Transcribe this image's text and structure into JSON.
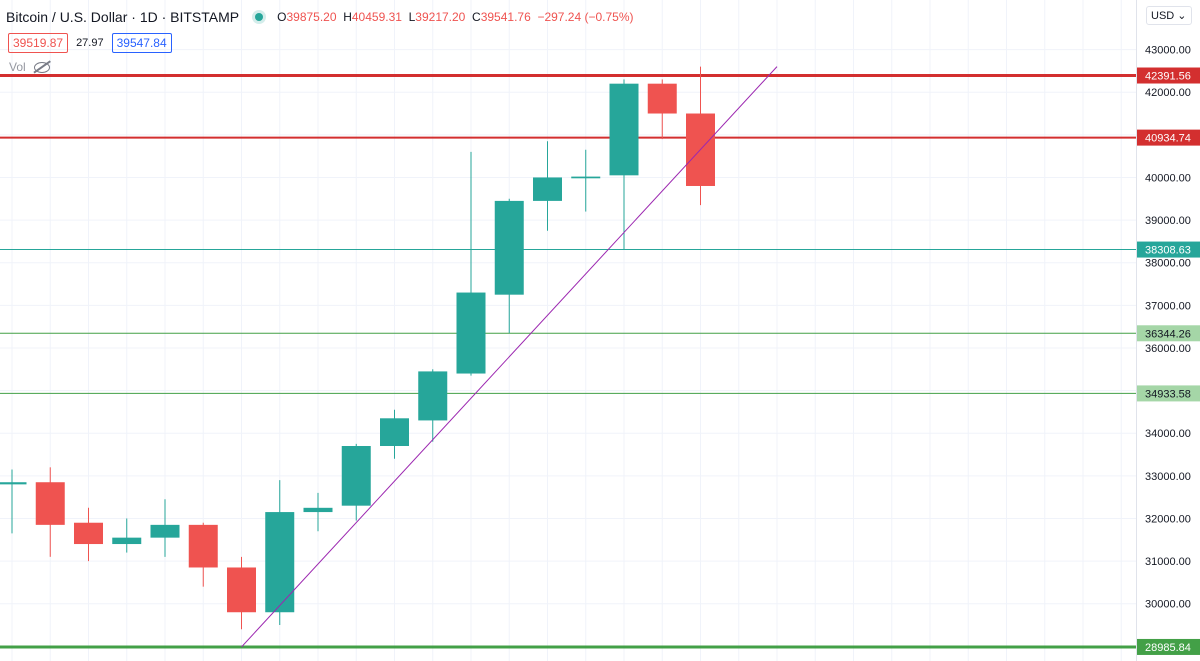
{
  "header": {
    "symbol": "Bitcoin / U.S. Dollar · 1D · BITSTAMP",
    "o_label": "O",
    "o_value": "39875.20",
    "h_label": "H",
    "h_value": "40459.31",
    "l_label": "L",
    "l_value": "39217.20",
    "c_label": "C",
    "c_value": "39541.76",
    "change": "−297.24 (−0.75%)",
    "bid": "39519.87",
    "spread": "27.97",
    "ask": "39547.84",
    "vol_label": "Vol"
  },
  "currency_button": "USD",
  "colors": {
    "up": "#26a69a",
    "down": "#ef5350",
    "trend": "#9c27b0",
    "res_red": "#d32f2f",
    "sup_green": "#43a047"
  },
  "chart_data": {
    "type": "candlestick",
    "y_axis": {
      "ylim": [
        29360,
        43600
      ],
      "ticks": [
        30000,
        31000,
        32000,
        33000,
        34000,
        35000,
        36000,
        37000,
        38000,
        39000,
        40000,
        41000,
        42000,
        43000
      ],
      "tick_labels": [
        "30000.00",
        "31000.00",
        "32000.00",
        "33000.00",
        "34000.00",
        "35000.00",
        "36000.00",
        "37000.00",
        "38000.00",
        "39000.00",
        "40000.00",
        "41000.00",
        "42000.00",
        "43000.00"
      ]
    },
    "candles": [
      {
        "o": 32800,
        "h": 33150,
        "l": 31650,
        "c": 32850
      },
      {
        "o": 32850,
        "h": 33200,
        "l": 31100,
        "c": 31850
      },
      {
        "o": 31900,
        "h": 32250,
        "l": 31000,
        "c": 31400
      },
      {
        "o": 31400,
        "h": 32000,
        "l": 31200,
        "c": 31550
      },
      {
        "o": 31550,
        "h": 32450,
        "l": 31100,
        "c": 31850
      },
      {
        "o": 31850,
        "h": 31900,
        "l": 30400,
        "c": 30850
      },
      {
        "o": 30850,
        "h": 31100,
        "l": 29400,
        "c": 29800
      },
      {
        "o": 29800,
        "h": 32900,
        "l": 29500,
        "c": 32150
      },
      {
        "o": 32150,
        "h": 32600,
        "l": 31700,
        "c": 32250
      },
      {
        "o": 32300,
        "h": 33750,
        "l": 31950,
        "c": 33700
      },
      {
        "o": 33700,
        "h": 34550,
        "l": 33400,
        "c": 34350
      },
      {
        "o": 34300,
        "h": 35500,
        "l": 33800,
        "c": 35450
      },
      {
        "o": 35400,
        "h": 40600,
        "l": 35350,
        "c": 37300
      },
      {
        "o": 37250,
        "h": 39500,
        "l": 36350,
        "c": 39450
      },
      {
        "o": 39450,
        "h": 40850,
        "l": 38750,
        "c": 40000
      },
      {
        "o": 39980,
        "h": 40650,
        "l": 39200,
        "c": 40020
      },
      {
        "o": 40050,
        "h": 42300,
        "l": 38300,
        "c": 42200
      },
      {
        "o": 42200,
        "h": 42300,
        "l": 40900,
        "c": 41500
      },
      {
        "o": 41500,
        "h": 42600,
        "l": 39350,
        "c": 39800
      }
    ],
    "horizontal_lines": [
      {
        "value": 42391.56,
        "label": "42391.56",
        "color": "res_red",
        "width": 3
      },
      {
        "value": 40934.74,
        "label": "40934.74",
        "color": "res_red",
        "width": 2
      },
      {
        "value": 38308.63,
        "label": "38308.63",
        "color": "up",
        "width": 1
      },
      {
        "value": 36344.26,
        "label": "36344.26",
        "color": "sup_green",
        "width": 1
      },
      {
        "value": 34933.58,
        "label": "34933.58",
        "color": "sup_green",
        "width": 1
      },
      {
        "value": 28985.84,
        "label": "28985.84",
        "color": "sup_green",
        "width": 3
      }
    ],
    "trendline": {
      "from": {
        "candle": 6,
        "value": 28985.84
      },
      "to": {
        "candle": 20,
        "value": 42600
      }
    }
  }
}
